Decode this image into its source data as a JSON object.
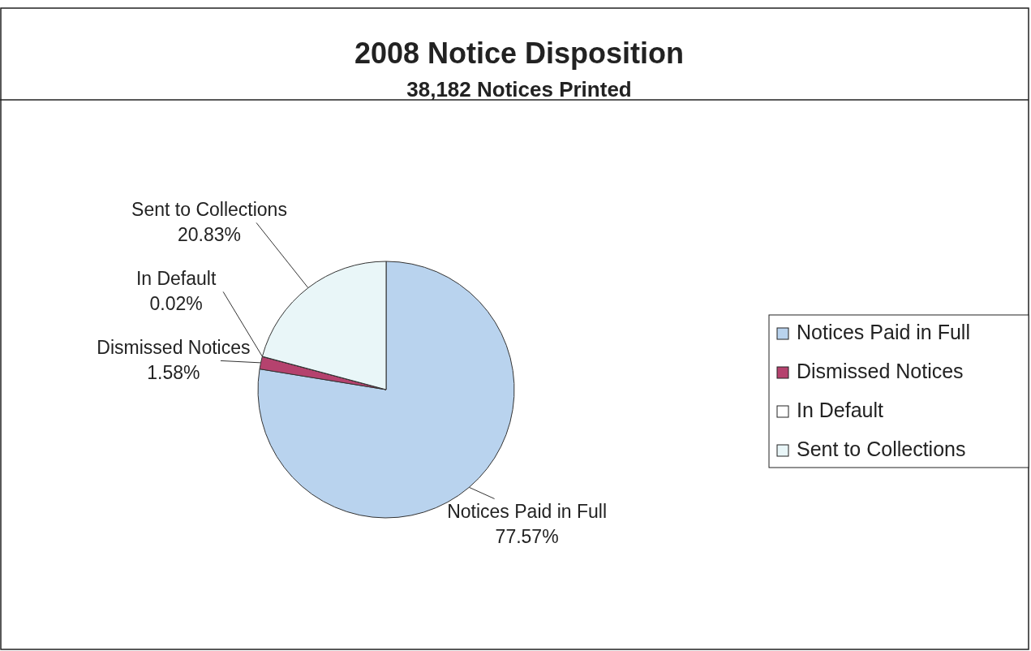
{
  "chart_data": {
    "type": "pie",
    "title": "2008 Notice Disposition",
    "subtitle": "38,182 Notices Printed",
    "categories": [
      "Notices Paid in Full",
      "Dismissed Notices",
      "In Default",
      "Sent to Collections"
    ],
    "values": [
      77.57,
      1.58,
      0.02,
      20.83
    ],
    "value_labels": [
      "77.57%",
      "1.58%",
      "0.02%",
      "20.83%"
    ],
    "colors": [
      "#b9d3ee",
      "#b5426e",
      "#ffffff",
      "#e9f6f8"
    ],
    "legend": "right"
  }
}
